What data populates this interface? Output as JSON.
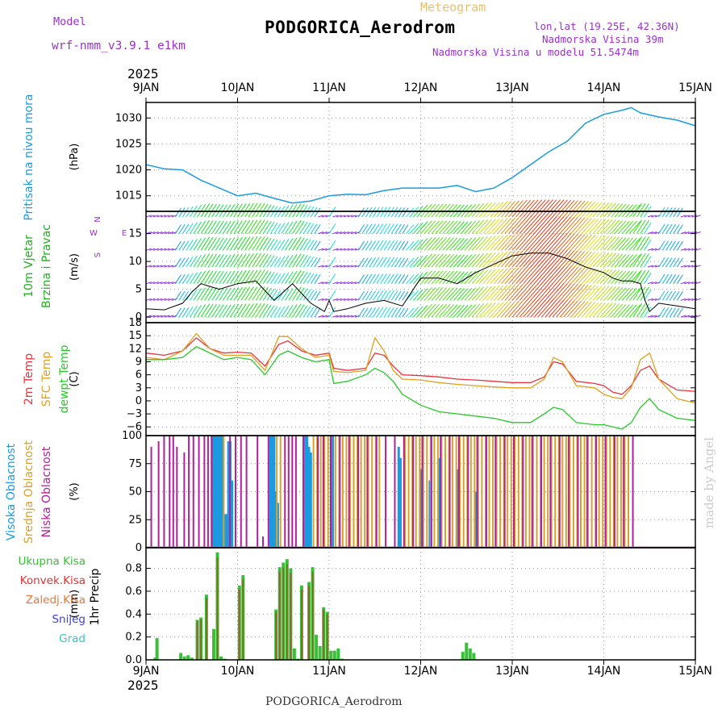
{
  "header": {
    "meteogram_label": "Meteogram",
    "model_label": "Model",
    "model_name": "wrf-nmm_v3.9.1 e1km",
    "station": "PODGORICA_Aerodrom",
    "lonlat": "lon,lat (19.25E, 42.36N)",
    "elevation": "Nadmorska Visina 39m",
    "model_elevation": "Nadmorska Visina u modelu 51.5474m",
    "footer_station": "PODGORICA_Aerodrom",
    "credit": "made by Angel"
  },
  "colors": {
    "pressure": "#1a9be0",
    "temp2m": "#e8323c",
    "sfc_temp": "#e0a020",
    "dewpt": "#28c828",
    "high_cloud": "#1a9be0",
    "mid_cloud": "#d8a030",
    "low_cloud": "#b0209a",
    "total_precip": "#38c038",
    "conv_precip": "#e83030",
    "ice_precip": "#e87838",
    "snow": "#4040d8",
    "graupel": "#30c8c8",
    "wind_calm": "#8a2be2",
    "wind_label": "#20b020",
    "model_text": "#9b30d0"
  },
  "chart_data": [
    {
      "type": "line",
      "panel": "pressure",
      "ylabel_lines": [
        "Pritisak na nivou mora"
      ],
      "unit": "(hPa)",
      "xlabel_year": "2025",
      "x_ticks": [
        "9JAN",
        "10JAN",
        "11JAN",
        "12JAN",
        "13JAN",
        "14JAN",
        "15JAN"
      ],
      "x_range_days": [
        9,
        15
      ],
      "ylim": [
        1012,
        1033
      ],
      "y_ticks": [
        1015,
        1020,
        1025,
        1030
      ],
      "grid": true,
      "series": [
        {
          "name": "Pritisak na nivou mora",
          "x": [
            9.0,
            9.2,
            9.4,
            9.6,
            9.8,
            10.0,
            10.2,
            10.4,
            10.6,
            10.8,
            11.0,
            11.2,
            11.4,
            11.6,
            11.8,
            12.0,
            12.2,
            12.4,
            12.6,
            12.8,
            13.0,
            13.2,
            13.4,
            13.6,
            13.8,
            14.0,
            14.2,
            14.3,
            14.4,
            14.6,
            14.8,
            15.0
          ],
          "values": [
            1021,
            1020.2,
            1020,
            1018,
            1016.5,
            1015,
            1015.5,
            1014.5,
            1013.6,
            1014,
            1015,
            1015.3,
            1015.2,
            1016,
            1016.5,
            1016.5,
            1016.5,
            1017,
            1015.8,
            1016.5,
            1018.5,
            1021,
            1023.5,
            1025.5,
            1029,
            1030.7,
            1031.5,
            1032,
            1031,
            1030.2,
            1029.6,
            1028.5
          ]
        }
      ]
    },
    {
      "type": "line",
      "panel": "wind",
      "ylabel_lines": [
        "10m Vjetar",
        "Brzina i Pravac"
      ],
      "unit": "(m/s)",
      "compass": {
        "north": "N",
        "south": "S",
        "east": "E",
        "west": "W"
      },
      "ylim": [
        -1,
        19
      ],
      "y_ticks": [
        0,
        5,
        10,
        15
      ],
      "grid": true,
      "series": [
        {
          "name": "Brzina",
          "x": [
            9.0,
            9.2,
            9.4,
            9.5,
            9.6,
            9.8,
            10.0,
            10.2,
            10.4,
            10.6,
            10.8,
            10.95,
            11.0,
            11.05,
            11.2,
            11.4,
            11.6,
            11.8,
            12.0,
            12.2,
            12.4,
            12.6,
            12.8,
            13.0,
            13.2,
            13.4,
            13.6,
            13.8,
            14.0,
            14.1,
            14.2,
            14.3,
            14.4,
            14.45,
            14.5,
            14.6,
            14.8,
            15.0
          ],
          "values": [
            1.5,
            1.3,
            2.5,
            4.5,
            6,
            5,
            6,
            6.5,
            3,
            6,
            2.5,
            1,
            3,
            1,
            1.5,
            2.5,
            3,
            2,
            7,
            7,
            6,
            8,
            9.5,
            11,
            11.5,
            11.5,
            10.5,
            9,
            8,
            7,
            6.5,
            6.5,
            6,
            3,
            1,
            2.5,
            2,
            1.5
          ]
        }
      ]
    },
    {
      "type": "line",
      "panel": "temperature",
      "ylabel_lines": [
        "2m Temp",
        "SFC Temp",
        "dewpt Temp"
      ],
      "unit": "(C)",
      "ylim": [
        -8,
        18
      ],
      "y_ticks": [
        -6,
        -3,
        0,
        3,
        6,
        9,
        12,
        15,
        18
      ],
      "grid": true,
      "series": [
        {
          "name": "2m Temp",
          "x": [
            9.0,
            9.2,
            9.4,
            9.55,
            9.7,
            9.85,
            10.0,
            10.15,
            10.3,
            10.45,
            10.55,
            10.7,
            10.85,
            11.0,
            11.05,
            11.2,
            11.4,
            11.5,
            11.6,
            11.7,
            11.8,
            12.0,
            12.2,
            12.4,
            12.6,
            12.8,
            13.0,
            13.2,
            13.35,
            13.45,
            13.55,
            13.7,
            13.9,
            14.0,
            14.1,
            14.2,
            14.3,
            14.4,
            14.5,
            14.6,
            14.8,
            15.0
          ],
          "values": [
            11,
            10.5,
            11.5,
            14.5,
            12,
            11,
            11.2,
            11,
            8,
            13,
            13.8,
            11.5,
            10.5,
            11,
            7.5,
            7,
            7.5,
            11,
            10.5,
            8,
            6,
            5.8,
            5.5,
            5,
            4.8,
            4.5,
            4.2,
            4.2,
            5.5,
            9,
            8.5,
            4.5,
            4,
            3.5,
            2,
            1.5,
            3.5,
            7,
            8,
            5,
            2.5,
            2.2
          ]
        },
        {
          "name": "SFC Temp",
          "x": [
            9.0,
            9.2,
            9.4,
            9.55,
            9.7,
            9.85,
            10.0,
            10.15,
            10.3,
            10.45,
            10.55,
            10.7,
            10.85,
            11.0,
            11.05,
            11.2,
            11.4,
            11.5,
            11.6,
            11.7,
            11.8,
            12.0,
            12.2,
            12.4,
            12.6,
            12.8,
            13.0,
            13.2,
            13.35,
            13.45,
            13.55,
            13.7,
            13.9,
            14.0,
            14.1,
            14.2,
            14.3,
            14.4,
            14.5,
            14.6,
            14.8,
            15.0
          ],
          "values": [
            10,
            9.5,
            11.5,
            15.5,
            12,
            10.5,
            10.5,
            10.5,
            7,
            14.8,
            14.8,
            12,
            10,
            10.5,
            6.8,
            6.5,
            7,
            14.5,
            11.5,
            7,
            5,
            4.8,
            4.2,
            3.8,
            3.5,
            3.2,
            3,
            3,
            5,
            10,
            9,
            3.5,
            3,
            1.5,
            0.8,
            0.5,
            3,
            9.5,
            11,
            5,
            0.5,
            -0.5
          ]
        },
        {
          "name": "dewpt Temp",
          "x": [
            9.0,
            9.2,
            9.4,
            9.55,
            9.7,
            9.85,
            10.0,
            10.15,
            10.3,
            10.45,
            10.55,
            10.7,
            10.85,
            11.0,
            11.05,
            11.2,
            11.4,
            11.5,
            11.6,
            11.7,
            11.8,
            12.0,
            12.2,
            12.4,
            12.6,
            12.8,
            13.0,
            13.2,
            13.35,
            13.45,
            13.55,
            13.7,
            13.9,
            14.0,
            14.1,
            14.2,
            14.3,
            14.4,
            14.5,
            14.6,
            14.8,
            15.0
          ],
          "values": [
            9.5,
            9.5,
            10,
            12.5,
            11,
            9.5,
            10,
            9.5,
            6,
            10.5,
            11.5,
            10,
            9,
            9.5,
            4,
            4.5,
            6,
            7.5,
            6.5,
            4.5,
            1.5,
            -1,
            -2.5,
            -3,
            -3.5,
            -4,
            -5,
            -5,
            -3,
            -1.5,
            -2,
            -5,
            -5.5,
            -5.5,
            -6,
            -6.5,
            -5,
            -1.5,
            0.5,
            -2,
            -4,
            -4.5
          ]
        }
      ]
    },
    {
      "type": "bar",
      "panel": "clouds",
      "ylabel_lines": [
        "Visoka Oblacnost",
        "Srednja Oblacnost",
        "Niska Oblacnost"
      ],
      "unit": "(%)",
      "ylim": [
        0,
        100
      ],
      "y_ticks": [
        0,
        25,
        50,
        75,
        100
      ],
      "grid": true,
      "series": [
        {
          "name": "Visoka Oblacnost",
          "x": [
            9.72,
            9.74,
            9.76,
            9.78,
            9.8,
            9.82,
            9.84,
            9.86,
            9.88,
            9.9,
            9.92,
            9.94,
            10.36,
            10.38,
            10.4,
            10.42,
            10.44,
            10.74,
            10.76,
            10.78,
            10.8,
            11.02,
            11.04,
            11.76,
            11.78,
            12.0,
            12.1,
            12.2,
            12.4,
            12.6
          ],
          "values": [
            100,
            100,
            100,
            100,
            100,
            100,
            100,
            30,
            30,
            95,
            95,
            60,
            100,
            100,
            100,
            50,
            40,
            100,
            100,
            90,
            85,
            100,
            100,
            90,
            80,
            70,
            60,
            80,
            70,
            50
          ]
        },
        {
          "name": "Srednja Oblacnost",
          "x": [
            9.84,
            10.42,
            10.46,
            10.82,
            10.86,
            10.9,
            10.94,
            10.98,
            11.06,
            11.1,
            11.14,
            11.18,
            11.22,
            11.26,
            11.3,
            11.34,
            11.38,
            11.42,
            11.46,
            11.5,
            11.54,
            11.82,
            11.86,
            11.9,
            11.94,
            11.98,
            12.02,
            12.06,
            12.1,
            12.14,
            12.18,
            12.22,
            12.26,
            12.3,
            12.34,
            12.38,
            12.42,
            12.46,
            12.5,
            12.54,
            12.58,
            12.62,
            12.66,
            12.7,
            12.74,
            12.78,
            12.82,
            12.86,
            12.9,
            12.94,
            12.98,
            13.02,
            13.06,
            13.1,
            13.14,
            13.18,
            13.22,
            13.26,
            13.3,
            13.34,
            13.38,
            13.42,
            13.46,
            13.5,
            13.54,
            13.58,
            13.62,
            13.66,
            13.7,
            13.74,
            13.78,
            13.82,
            13.86,
            13.9,
            13.94,
            13.98,
            14.02,
            14.06,
            14.1,
            14.14,
            14.18,
            14.22,
            14.26
          ],
          "values": [
            100,
            100,
            100,
            100,
            100,
            100,
            100,
            100,
            100,
            100,
            100,
            100,
            100,
            100,
            100,
            100,
            100,
            100,
            100,
            100,
            100,
            100,
            100,
            100,
            100,
            100,
            100,
            100,
            100,
            100,
            100,
            100,
            100,
            100,
            100,
            100,
            100,
            100,
            100,
            100,
            100,
            100,
            100,
            100,
            100,
            100,
            100,
            100,
            100,
            100,
            100,
            100,
            100,
            100,
            100,
            100,
            100,
            100,
            100,
            100,
            100,
            100,
            100,
            100,
            100,
            100,
            100,
            100,
            100,
            100,
            100,
            100,
            100,
            100,
            100,
            100,
            100,
            100,
            100,
            100,
            100,
            100,
            100
          ]
        },
        {
          "name": "Niska Oblacnost",
          "x": [
            9.04,
            9.12,
            9.18,
            9.24,
            9.28,
            9.32,
            9.4,
            9.45,
            9.5,
            9.56,
            9.62,
            9.66,
            9.7,
            9.9,
            9.96,
            10.02,
            10.08,
            10.2,
            10.26,
            10.32,
            10.5,
            10.54,
            10.58,
            10.62,
            10.7,
            10.86,
            10.92,
            11.0,
            11.1,
            11.2,
            11.3,
            11.4,
            11.5,
            11.6,
            11.7,
            11.8,
            11.9,
            12.0,
            12.1,
            12.2,
            12.3,
            12.4,
            12.5,
            12.6,
            12.7,
            12.8,
            12.9,
            13.0,
            13.1,
            13.2,
            13.3,
            13.4,
            13.5,
            13.6,
            13.7,
            13.8,
            13.9,
            14.0,
            14.1,
            14.2,
            14.3
          ],
          "values": [
            90,
            95,
            100,
            100,
            100,
            90,
            85,
            100,
            100,
            100,
            100,
            100,
            100,
            100,
            100,
            100,
            100,
            100,
            10,
            100,
            100,
            100,
            100,
            100,
            100,
            100,
            100,
            100,
            100,
            100,
            100,
            100,
            100,
            100,
            100,
            100,
            100,
            100,
            100,
            100,
            100,
            100,
            100,
            100,
            100,
            100,
            100,
            100,
            100,
            100,
            100,
            100,
            100,
            100,
            100,
            100,
            100,
            100,
            100,
            100,
            100
          ]
        }
      ]
    },
    {
      "type": "bar",
      "panel": "precip",
      "ylabel_lines": [
        "1hr Precip"
      ],
      "unit": "(mm)",
      "legend": [
        "Ukupna Kisa",
        "Konvek.Kisa",
        "Zaledj.Kisa",
        "Snijeg",
        "Grad"
      ],
      "ylim": [
        0,
        0.98
      ],
      "y_ticks": [
        0.0,
        0.2,
        0.4,
        0.6,
        0.8
      ],
      "grid": true,
      "series": [
        {
          "name": "Ukupna Kisa",
          "x": [
            9.1,
            9.12,
            9.38,
            9.42,
            9.46,
            9.5,
            9.56,
            9.6,
            9.66,
            9.74,
            9.78,
            9.82,
            9.86,
            10.02,
            10.06,
            10.42,
            10.46,
            10.5,
            10.54,
            10.58,
            10.62,
            10.66,
            10.7,
            10.78,
            10.82,
            10.86,
            10.9,
            10.94,
            10.98,
            11.02,
            11.06,
            11.1,
            11.14,
            12.46,
            12.5,
            12.54,
            12.58
          ],
          "values": [
            0.02,
            0.19,
            0.06,
            0.03,
            0.04,
            0.02,
            0.35,
            0.37,
            0.57,
            0.27,
            0.94,
            0.03,
            0.01,
            0.65,
            0.74,
            0.44,
            0.81,
            0.85,
            0.88,
            0.8,
            0.1,
            0.01,
            0.65,
            0.68,
            0.81,
            0.22,
            0.12,
            0.46,
            0.42,
            0.08,
            0.08,
            0.1,
            0.01,
            0.07,
            0.15,
            0.1,
            0.06
          ]
        }
      ]
    }
  ]
}
